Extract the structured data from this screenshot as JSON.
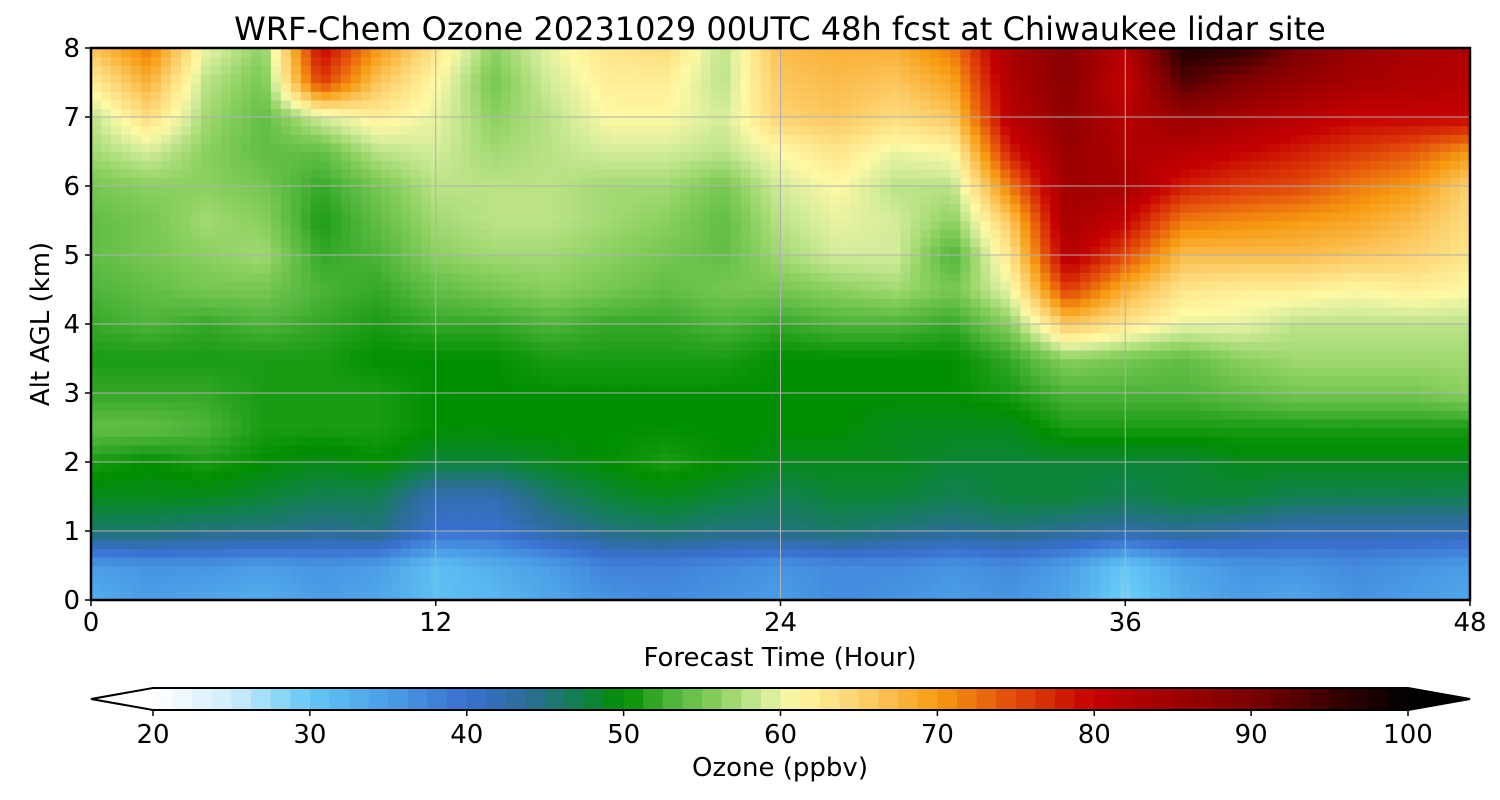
{
  "chart_data": {
    "type": "heatmap",
    "title": "WRF-Chem Ozone  20231029 00UTC 48h fcst at Chiwaukee lidar site",
    "xlabel": "Forecast Time (Hour)",
    "ylabel": "Alt AGL (km)",
    "xlim": [
      0,
      48
    ],
    "ylim": [
      0,
      8
    ],
    "xticks": [
      0,
      12,
      24,
      36,
      48
    ],
    "yticks": [
      0,
      1,
      2,
      3,
      4,
      5,
      6,
      7,
      8
    ],
    "grid": true,
    "colorbar": {
      "label": "Ozone  (ppbv)",
      "min": 20,
      "max": 100,
      "ticks": [
        20,
        30,
        40,
        50,
        60,
        70,
        80,
        90,
        100
      ],
      "extend": "both",
      "orientation": "horizontal",
      "stops": [
        {
          "value": 20,
          "color": "#ffffff"
        },
        {
          "value": 25,
          "color": "#cfeefb"
        },
        {
          "value": 30,
          "color": "#64c8f6"
        },
        {
          "value": 35,
          "color": "#4a9ee6"
        },
        {
          "value": 40,
          "color": "#3a6fd0"
        },
        {
          "value": 44,
          "color": "#2a6e94"
        },
        {
          "value": 47,
          "color": "#127f52"
        },
        {
          "value": 50,
          "color": "#008f00"
        },
        {
          "value": 53,
          "color": "#4db43a"
        },
        {
          "value": 56,
          "color": "#8ad05f"
        },
        {
          "value": 59,
          "color": "#d3ec9a"
        },
        {
          "value": 61,
          "color": "#fff9a5"
        },
        {
          "value": 65,
          "color": "#fdd270"
        },
        {
          "value": 70,
          "color": "#f79b12"
        },
        {
          "value": 75,
          "color": "#e2490a"
        },
        {
          "value": 80,
          "color": "#c50000"
        },
        {
          "value": 85,
          "color": "#a00000"
        },
        {
          "value": 90,
          "color": "#7a0000"
        },
        {
          "value": 95,
          "color": "#3a0000"
        },
        {
          "value": 100,
          "color": "#000000"
        }
      ]
    },
    "x": [
      0,
      2,
      4,
      6,
      8,
      10,
      12,
      14,
      16,
      18,
      20,
      22,
      24,
      26,
      28,
      30,
      32,
      34,
      36,
      38,
      40,
      42,
      44,
      46,
      48
    ],
    "y": [
      0,
      0.5,
      1,
      1.5,
      2,
      2.5,
      3,
      3.5,
      4,
      4.5,
      5,
      5.5,
      6,
      6.5,
      7,
      7.5,
      8
    ],
    "z": [
      [
        33,
        35,
        34,
        33,
        35,
        34,
        31,
        32,
        34,
        36,
        37,
        36,
        35,
        37,
        36,
        35,
        36,
        34,
        29,
        33,
        35,
        34,
        36,
        35,
        34
      ],
      [
        35,
        36,
        36,
        35,
        36,
        35,
        31,
        33,
        35,
        38,
        38,
        37,
        36,
        37,
        37,
        36,
        37,
        35,
        30,
        34,
        36,
        36,
        37,
        36,
        35
      ],
      [
        46,
        46,
        45,
        45,
        44,
        45,
        40,
        40,
        43,
        45,
        46,
        45,
        45,
        46,
        45,
        44,
        45,
        44,
        43,
        44,
        43,
        42,
        42,
        42,
        42
      ],
      [
        49,
        49,
        49,
        48,
        47,
        47,
        42,
        42,
        46,
        48,
        49,
        48,
        47,
        48,
        48,
        47,
        48,
        48,
        47,
        48,
        48,
        47,
        47,
        47,
        47
      ],
      [
        51,
        50,
        51,
        50,
        49,
        50,
        48,
        48,
        49,
        50,
        51,
        50,
        49,
        49,
        49,
        48,
        48,
        48,
        48,
        48,
        49,
        49,
        49,
        49,
        49
      ],
      [
        54,
        54,
        53,
        51,
        51,
        51,
        50,
        50,
        50,
        50,
        50,
        50,
        50,
        50,
        49,
        49,
        49,
        51,
        51,
        51,
        51,
        51,
        51,
        51,
        51
      ],
      [
        52,
        52,
        52,
        51,
        51,
        51,
        50,
        50,
        50,
        50,
        50,
        50,
        50,
        50,
        50,
        50,
        51,
        53,
        53,
        53,
        54,
        55,
        55,
        55,
        56
      ],
      [
        51,
        51,
        51,
        51,
        51,
        50,
        50,
        50,
        51,
        51,
        51,
        51,
        50,
        50,
        50,
        50,
        52,
        56,
        55,
        54,
        56,
        57,
        57,
        57,
        57
      ],
      [
        52,
        53,
        52,
        53,
        52,
        51,
        52,
        52,
        53,
        52,
        52,
        53,
        52,
        53,
        53,
        52,
        56,
        66,
        63,
        60,
        60,
        58,
        58,
        58,
        58
      ],
      [
        53,
        54,
        55,
        55,
        53,
        52,
        54,
        55,
        56,
        55,
        54,
        55,
        55,
        56,
        57,
        55,
        60,
        76,
        68,
        63,
        62,
        62,
        61,
        62,
        61
      ],
      [
        54,
        55,
        56,
        57,
        52,
        53,
        56,
        57,
        57,
        56,
        55,
        54,
        57,
        59,
        59,
        53,
        63,
        82,
        75,
        67,
        67,
        67,
        66,
        65,
        63
      ],
      [
        54,
        55,
        57,
        56,
        51,
        54,
        57,
        58,
        58,
        57,
        56,
        54,
        58,
        60,
        59,
        56,
        66,
        84,
        80,
        72,
        71,
        70,
        69,
        67,
        64
      ],
      [
        55,
        56,
        56,
        55,
        52,
        55,
        58,
        58,
        58,
        57,
        57,
        55,
        59,
        61,
        58,
        58,
        72,
        85,
        84,
        78,
        76,
        75,
        72,
        70,
        65
      ],
      [
        57,
        59,
        56,
        54,
        54,
        58,
        59,
        57,
        58,
        59,
        59,
        58,
        61,
        63,
        60,
        61,
        78,
        86,
        83,
        82,
        80,
        78,
        76,
        74,
        70
      ],
      [
        58,
        64,
        57,
        54,
        59,
        62,
        60,
        56,
        58,
        61,
        61,
        59,
        65,
        66,
        64,
        66,
        82,
        87,
        82,
        86,
        84,
        82,
        80,
        80,
        80
      ],
      [
        62,
        68,
        58,
        55,
        76,
        66,
        61,
        55,
        59,
        62,
        62,
        58,
        66,
        67,
        66,
        69,
        83,
        88,
        80,
        93,
        89,
        86,
        84,
        83,
        82
      ],
      [
        66,
        72,
        60,
        56,
        80,
        70,
        63,
        56,
        60,
        63,
        64,
        58,
        67,
        68,
        68,
        72,
        84,
        88,
        82,
        97,
        96,
        90,
        86,
        84,
        83
      ]
    ]
  }
}
